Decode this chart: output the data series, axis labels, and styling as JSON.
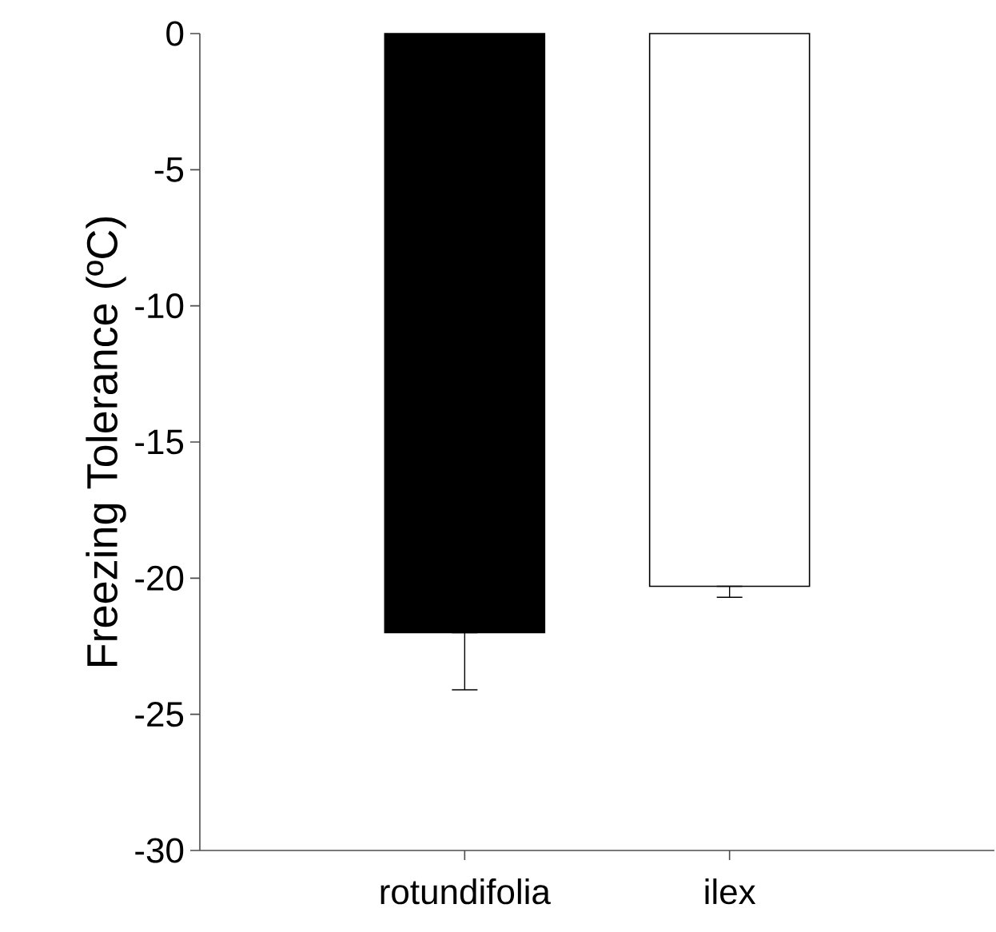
{
  "chart_data": {
    "type": "bar",
    "ylabel": "Freezing Tolerance (ºC)",
    "categories": [
      "rotundifolia",
      "ilex"
    ],
    "values": [
      -22.0,
      -20.3
    ],
    "colors": [
      "#000000",
      "#ffffff"
    ],
    "errors": [
      [
        -24.1,
        -22.0
      ],
      [
        -20.7,
        -20.3
      ]
    ],
    "ylim": [
      -30,
      0
    ],
    "yticks": [
      -30,
      -25,
      -20,
      -15,
      -10,
      -5,
      0
    ],
    "grid": false
  }
}
